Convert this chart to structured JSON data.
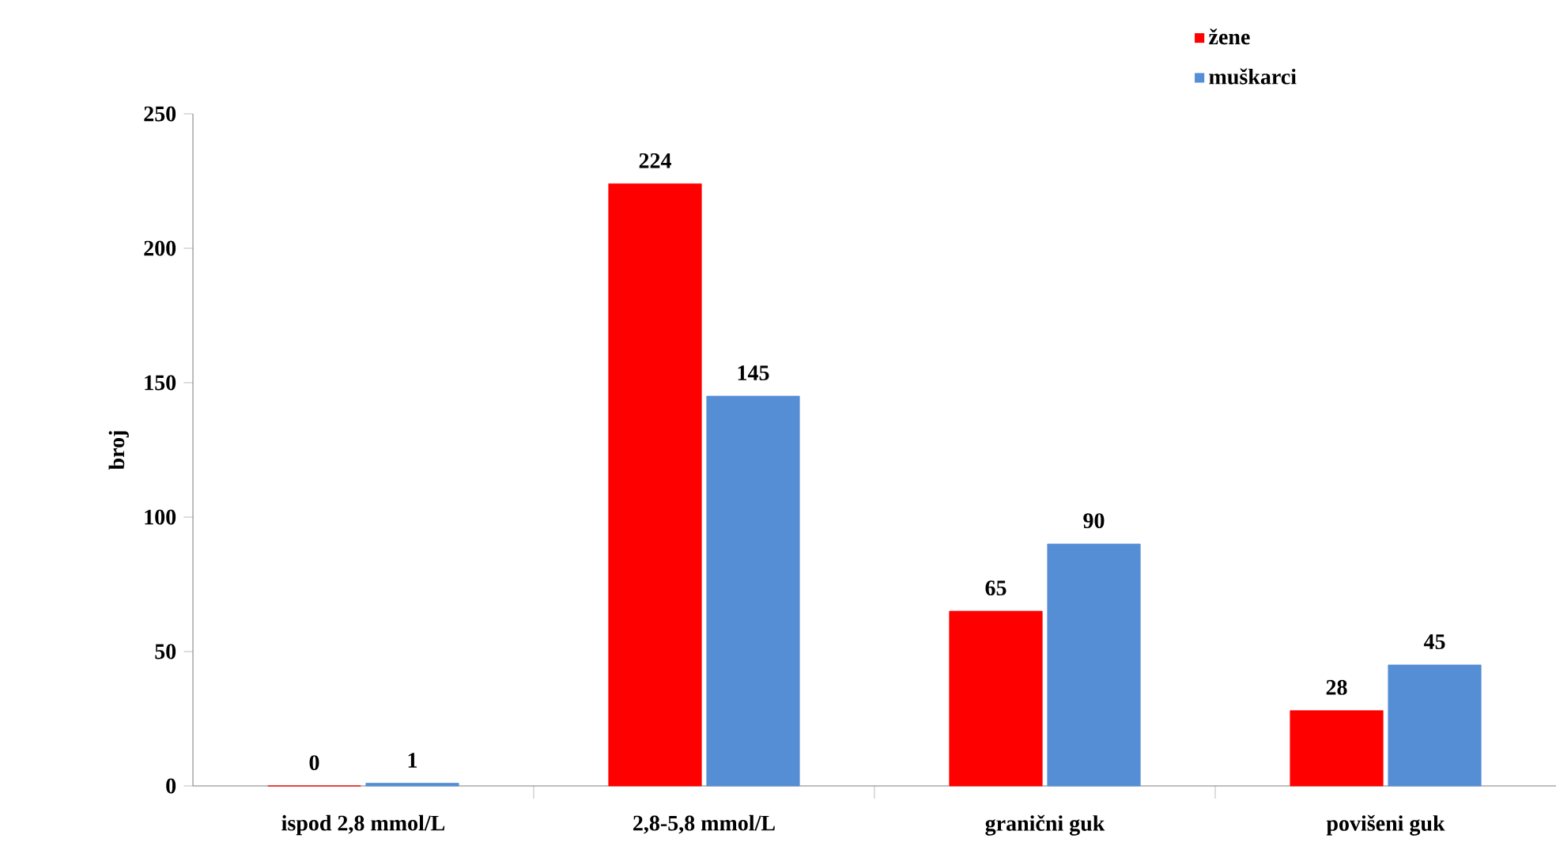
{
  "chart_data": {
    "type": "bar",
    "ylabel": "broj",
    "categories": [
      "ispod 2,8 mmol/L",
      "2,8-5,8 mmol/L",
      "granični guk",
      "povišeni guk"
    ],
    "series": [
      {
        "name": "žene",
        "color": "#ff0000",
        "values": [
          0,
          224,
          65,
          28
        ]
      },
      {
        "name": "muškarci",
        "color": "#558ed5",
        "values": [
          1,
          145,
          90,
          45
        ]
      }
    ],
    "ylim": [
      0,
      250
    ],
    "yticks": [
      0,
      50,
      100,
      150,
      200,
      250
    ],
    "data_labels": true,
    "grid": false,
    "legend": "top right"
  }
}
